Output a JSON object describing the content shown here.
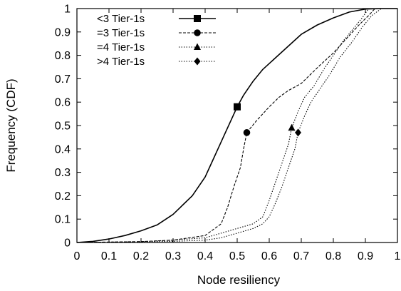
{
  "chart_data": {
    "type": "line",
    "title": "",
    "xlabel": "Node resiliency",
    "ylabel": "Frequency (CDF)",
    "xlim": [
      0,
      1
    ],
    "ylim": [
      0,
      1
    ],
    "x_ticks": [
      "0",
      "0.1",
      "0.2",
      "0.3",
      "0.4",
      "0.5",
      "0.6",
      "0.7",
      "0.8",
      "0.9",
      "1"
    ],
    "y_ticks": [
      "0",
      "0.1",
      "0.2",
      "0.3",
      "0.4",
      "0.5",
      "0.6",
      "0.7",
      "0.8",
      "0.9",
      "1"
    ],
    "grid": false,
    "legend_position": "top-left",
    "series": [
      {
        "name": "<3 Tier-1s",
        "marker": "square",
        "line_style": "solid",
        "marker_point": [
          0.5,
          0.58
        ],
        "points": [
          [
            0.0,
            0.0
          ],
          [
            0.05,
            0.005
          ],
          [
            0.1,
            0.015
          ],
          [
            0.15,
            0.03
          ],
          [
            0.2,
            0.05
          ],
          [
            0.25,
            0.075
          ],
          [
            0.3,
            0.12
          ],
          [
            0.33,
            0.16
          ],
          [
            0.36,
            0.2
          ],
          [
            0.38,
            0.24
          ],
          [
            0.4,
            0.28
          ],
          [
            0.42,
            0.34
          ],
          [
            0.44,
            0.4
          ],
          [
            0.46,
            0.46
          ],
          [
            0.48,
            0.52
          ],
          [
            0.5,
            0.58
          ],
          [
            0.52,
            0.63
          ],
          [
            0.55,
            0.69
          ],
          [
            0.58,
            0.74
          ],
          [
            0.62,
            0.79
          ],
          [
            0.66,
            0.84
          ],
          [
            0.7,
            0.89
          ],
          [
            0.75,
            0.93
          ],
          [
            0.8,
            0.96
          ],
          [
            0.85,
            0.985
          ],
          [
            0.9,
            0.998
          ],
          [
            0.95,
            1.0
          ],
          [
            1.0,
            1.0
          ]
        ]
      },
      {
        "name": "=3 Tier-1s",
        "marker": "circle",
        "line_style": "dashed",
        "marker_point": [
          0.53,
          0.47
        ],
        "points": [
          [
            0.0,
            0.0
          ],
          [
            0.2,
            0.004
          ],
          [
            0.3,
            0.01
          ],
          [
            0.4,
            0.03
          ],
          [
            0.45,
            0.08
          ],
          [
            0.47,
            0.15
          ],
          [
            0.49,
            0.24
          ],
          [
            0.51,
            0.32
          ],
          [
            0.52,
            0.4
          ],
          [
            0.53,
            0.47
          ],
          [
            0.56,
            0.52
          ],
          [
            0.6,
            0.58
          ],
          [
            0.63,
            0.62
          ],
          [
            0.66,
            0.65
          ],
          [
            0.7,
            0.68
          ],
          [
            0.73,
            0.72
          ],
          [
            0.76,
            0.76
          ],
          [
            0.8,
            0.81
          ],
          [
            0.84,
            0.87
          ],
          [
            0.88,
            0.93
          ],
          [
            0.91,
            0.97
          ],
          [
            0.93,
            1.0
          ],
          [
            1.0,
            1.0
          ]
        ]
      },
      {
        "name": "=4 Tier-1s",
        "marker": "triangle",
        "line_style": "dotted",
        "marker_point": [
          0.67,
          0.49
        ],
        "points": [
          [
            0.0,
            0.0
          ],
          [
            0.2,
            0.003
          ],
          [
            0.3,
            0.01
          ],
          [
            0.4,
            0.02
          ],
          [
            0.45,
            0.04
          ],
          [
            0.5,
            0.06
          ],
          [
            0.55,
            0.08
          ],
          [
            0.58,
            0.11
          ],
          [
            0.6,
            0.18
          ],
          [
            0.62,
            0.26
          ],
          [
            0.64,
            0.34
          ],
          [
            0.66,
            0.42
          ],
          [
            0.67,
            0.49
          ],
          [
            0.69,
            0.56
          ],
          [
            0.71,
            0.62
          ],
          [
            0.74,
            0.67
          ],
          [
            0.77,
            0.74
          ],
          [
            0.8,
            0.8
          ],
          [
            0.83,
            0.86
          ],
          [
            0.86,
            0.91
          ],
          [
            0.89,
            0.96
          ],
          [
            0.91,
            1.0
          ],
          [
            1.0,
            1.0
          ]
        ]
      },
      {
        "name": ">4 Tier-1s",
        "marker": "diamond",
        "line_style": "dotted",
        "marker_point": [
          0.69,
          0.47
        ],
        "points": [
          [
            0.0,
            0.0
          ],
          [
            0.3,
            0.005
          ],
          [
            0.4,
            0.01
          ],
          [
            0.45,
            0.02
          ],
          [
            0.5,
            0.04
          ],
          [
            0.55,
            0.06
          ],
          [
            0.58,
            0.08
          ],
          [
            0.6,
            0.11
          ],
          [
            0.62,
            0.17
          ],
          [
            0.64,
            0.24
          ],
          [
            0.66,
            0.32
          ],
          [
            0.68,
            0.4
          ],
          [
            0.69,
            0.47
          ],
          [
            0.71,
            0.54
          ],
          [
            0.73,
            0.6
          ],
          [
            0.76,
            0.66
          ],
          [
            0.79,
            0.72
          ],
          [
            0.82,
            0.79
          ],
          [
            0.86,
            0.86
          ],
          [
            0.89,
            0.92
          ],
          [
            0.92,
            0.97
          ],
          [
            0.95,
            1.0
          ],
          [
            1.0,
            1.0
          ]
        ]
      }
    ]
  }
}
